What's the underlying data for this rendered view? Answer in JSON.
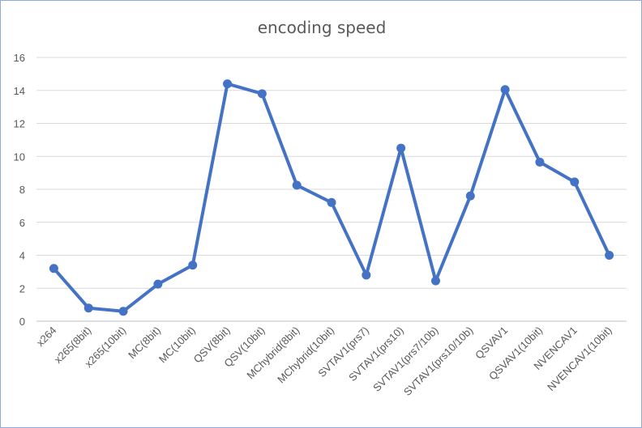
{
  "chart_data": {
    "type": "line",
    "title": "encoding speed",
    "xlabel": "",
    "ylabel": "",
    "ylim": [
      0,
      16
    ],
    "yticks": [
      "0",
      "2",
      "4",
      "6",
      "8",
      "10",
      "12",
      "14",
      "16"
    ],
    "grid": true,
    "legend": "none",
    "categories": [
      "x264",
      "x265(8bit)",
      "x265(10bit)",
      "MC(8bit)",
      "MC(10bit)",
      "QSV(8bit)",
      "QSV(10bit)",
      "MChybrid(8bit)",
      "MChybrid(10bit)",
      "SVTAV1(prs7)",
      "SVTAV1(prs10)",
      "SVTAV1(prs7/10b)",
      "SVTAV1(prs10/10b)",
      "QSVAV1",
      "QSVAV1(10bit)",
      "NVENCAV1",
      "NVENCAV1(10bit)"
    ],
    "series": [
      {
        "values": [
          3.2,
          0.8,
          0.6,
          2.25,
          3.4,
          14.4,
          13.8,
          8.25,
          7.2,
          2.8,
          10.5,
          2.45,
          7.6,
          14.05,
          9.65,
          8.45,
          4.0
        ],
        "color": "#4472c4"
      }
    ]
  }
}
